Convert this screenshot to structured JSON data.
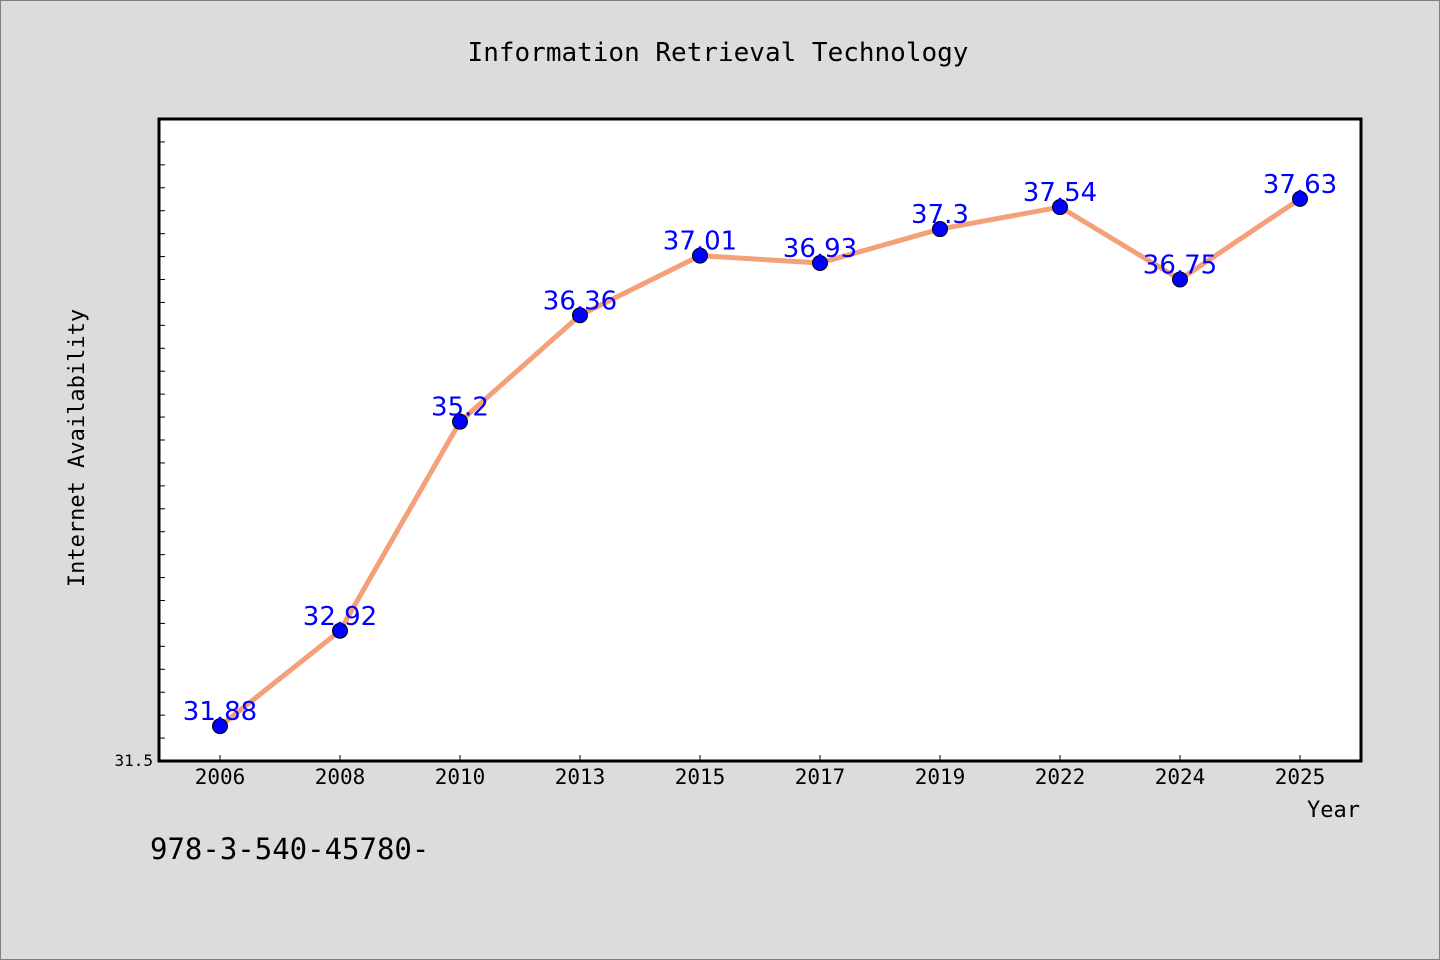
{
  "chart_data": {
    "type": "line",
    "title": "Information Retrieval Technology",
    "xlabel": "Year",
    "ylabel": "Internet Availability",
    "categories": [
      "2006",
      "2008",
      "2010",
      "2013",
      "2015",
      "2017",
      "2019",
      "2022",
      "2024",
      "2025"
    ],
    "series": [
      {
        "values": [
          31.88,
          32.92,
          35.2,
          36.36,
          37.01,
          36.93,
          37.3,
          37.54,
          36.75,
          37.63
        ],
        "labels": [
          "31.88",
          "32.92",
          "35.2",
          "36.36",
          "37.01",
          "36.93",
          "37.3",
          "37.54",
          "36.75",
          "37.63"
        ]
      }
    ],
    "ylim": [
      31.5,
      38.5
    ],
    "y_tick_labels": [
      "31.5"
    ],
    "grid": false,
    "line_color": "#f4a07a",
    "marker_color": "#0000ff",
    "label_color": "#0000ff"
  },
  "footnote": "978-3-540-45780-"
}
